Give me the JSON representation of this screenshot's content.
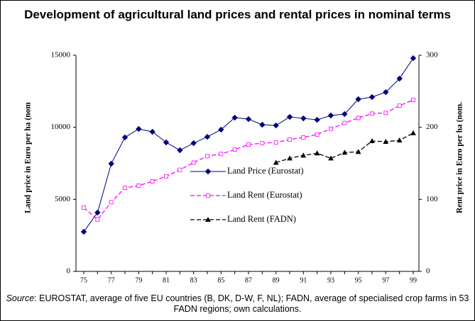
{
  "chart_data": {
    "type": "line",
    "title": "Development of agricultural land prices and rental prices in nominal terms",
    "y_label": "Land price in Euro per ha (nom",
    "y2_label": "Rent price in Euro per ha (nom.",
    "source_label": "Source",
    "source_text": ": EUROSTAT, average of five EU countries (B, DK, D-W, F, NL); FADN, average of specialised crop farms in 53 FADN regions; own calculations.",
    "categories": [
      "75",
      null,
      "77",
      null,
      "79",
      null,
      "81",
      null,
      "83",
      null,
      "85",
      null,
      "87",
      null,
      "89",
      null,
      "91",
      null,
      "93",
      null,
      "95",
      null,
      "97",
      null,
      "99"
    ],
    "ylim": [
      0,
      15000
    ],
    "yticks": [
      0,
      5000,
      10000,
      15000
    ],
    "y2lim": [
      0,
      300
    ],
    "y2ticks": [
      0,
      100,
      200,
      300
    ],
    "legend": "center",
    "series": [
      {
        "name": "Land Price (Eurostat)",
        "color": "#000080",
        "marker": "diamond",
        "dashed": false,
        "values": [
          2750,
          4080,
          7475,
          9300,
          9885,
          9690,
          8950,
          8410,
          8900,
          9340,
          9840,
          10670,
          10570,
          10180,
          10130,
          10720,
          10620,
          10520,
          10820,
          10920,
          11950,
          12100,
          12440,
          13380,
          14800
        ]
      },
      {
        "name": "Land Rent (Eurostat)",
        "color": "#ff00ff",
        "marker": "square",
        "dashed": true,
        "axis": "y2",
        "values": [
          88.5,
          72,
          96,
          116,
          119,
          125,
          132,
          141,
          151,
          160,
          163,
          169,
          176,
          178,
          179,
          183,
          186,
          190,
          198,
          206,
          213,
          219,
          220,
          230,
          238
        ]
      },
      {
        "name": "Land Rent (FADN)",
        "color": "#000000",
        "marker": "triangle",
        "dashed": true,
        "axis": "y2",
        "values": [
          null,
          null,
          null,
          null,
          null,
          null,
          null,
          null,
          null,
          null,
          null,
          null,
          null,
          null,
          151,
          157,
          161,
          164,
          157,
          165,
          166,
          181,
          180,
          182,
          192
        ]
      }
    ]
  }
}
